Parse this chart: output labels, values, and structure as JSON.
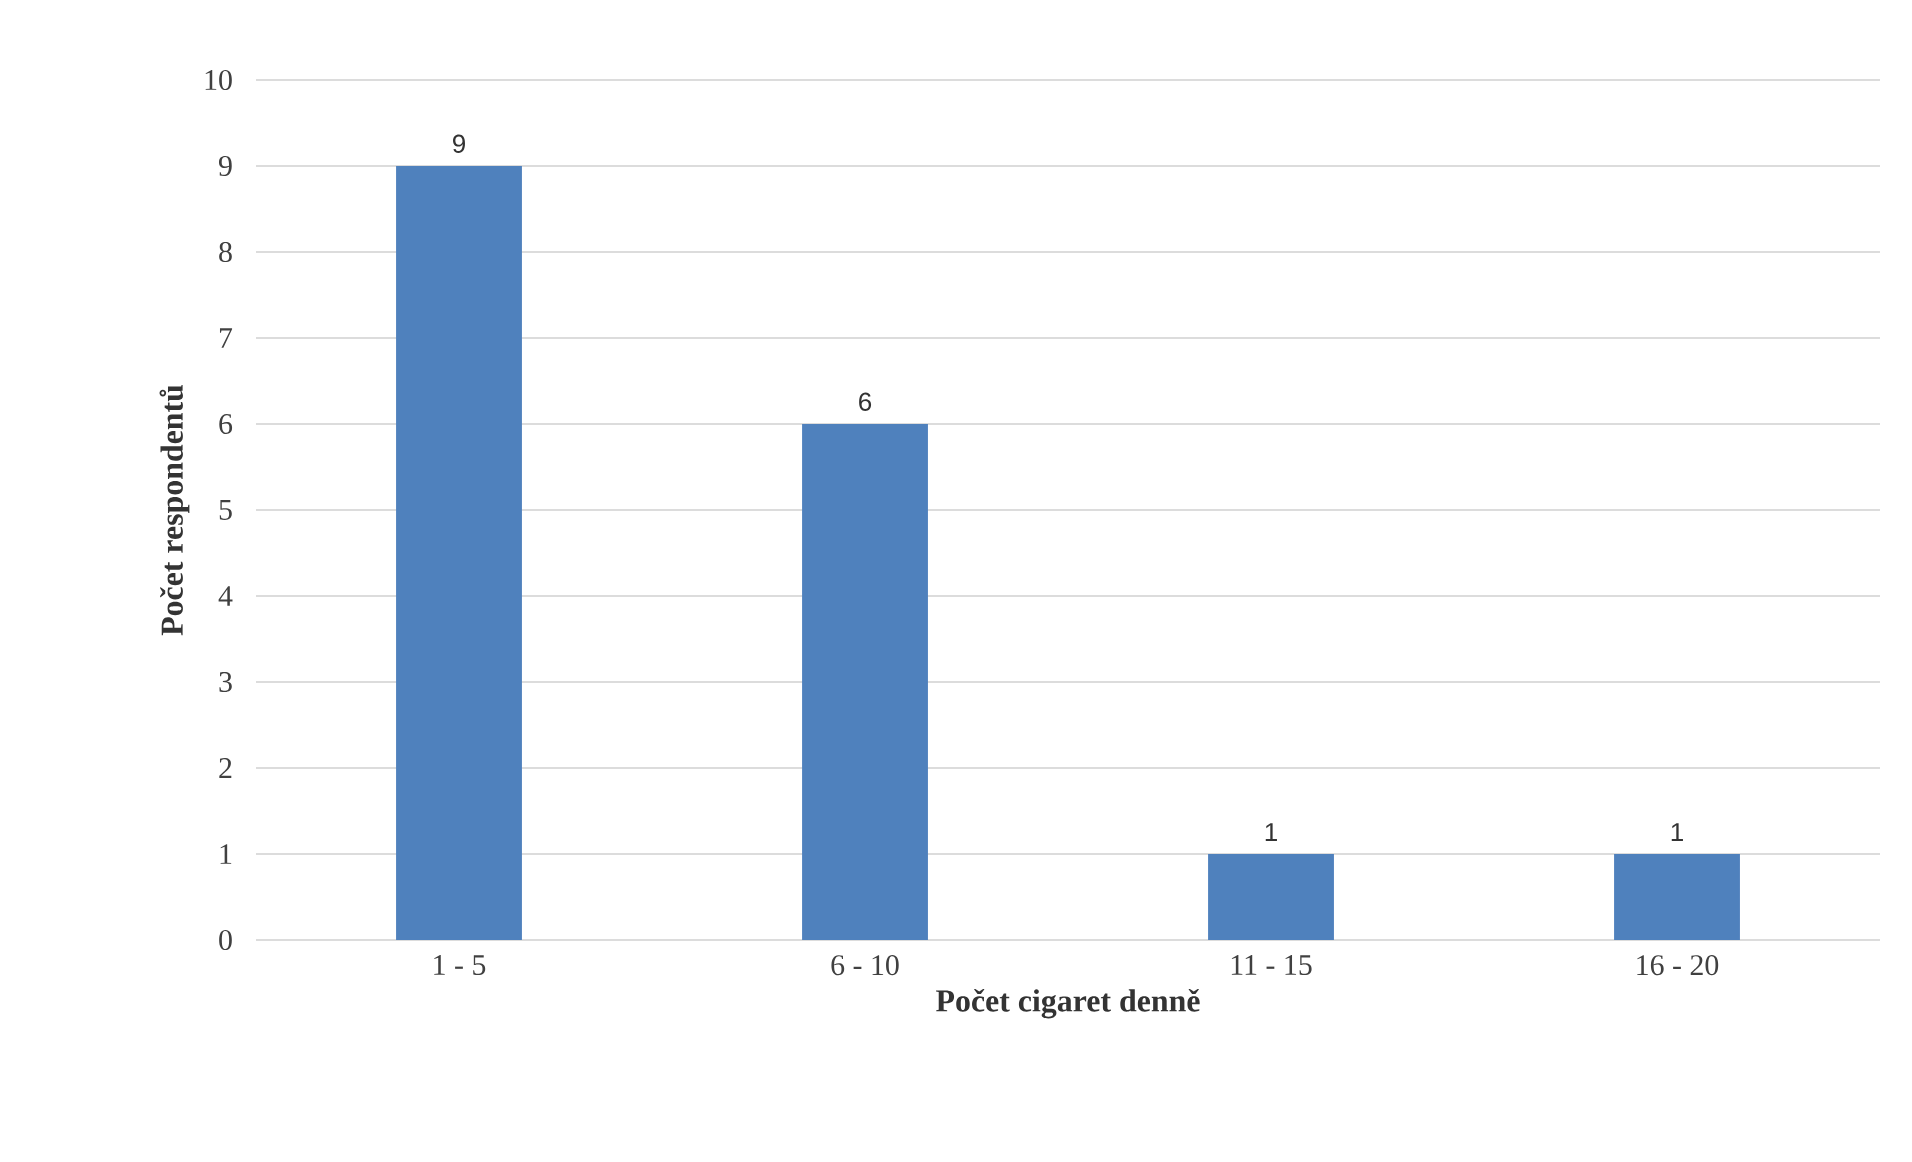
{
  "chart_data": {
    "type": "bar",
    "xlabel": "Počet cigaret denně",
    "ylabel": "Počet respondentů",
    "categories": [
      "1 - 5",
      "6 - 10",
      "11 - 15",
      "16 - 20"
    ],
    "values": [
      9,
      6,
      1,
      1
    ],
    "color": "#4f81bd",
    "ylim": [
      0,
      10
    ],
    "yticks": [
      0,
      1,
      2,
      3,
      4,
      5,
      6,
      7,
      8,
      9,
      10
    ],
    "grid": "y",
    "data_labels": true
  }
}
